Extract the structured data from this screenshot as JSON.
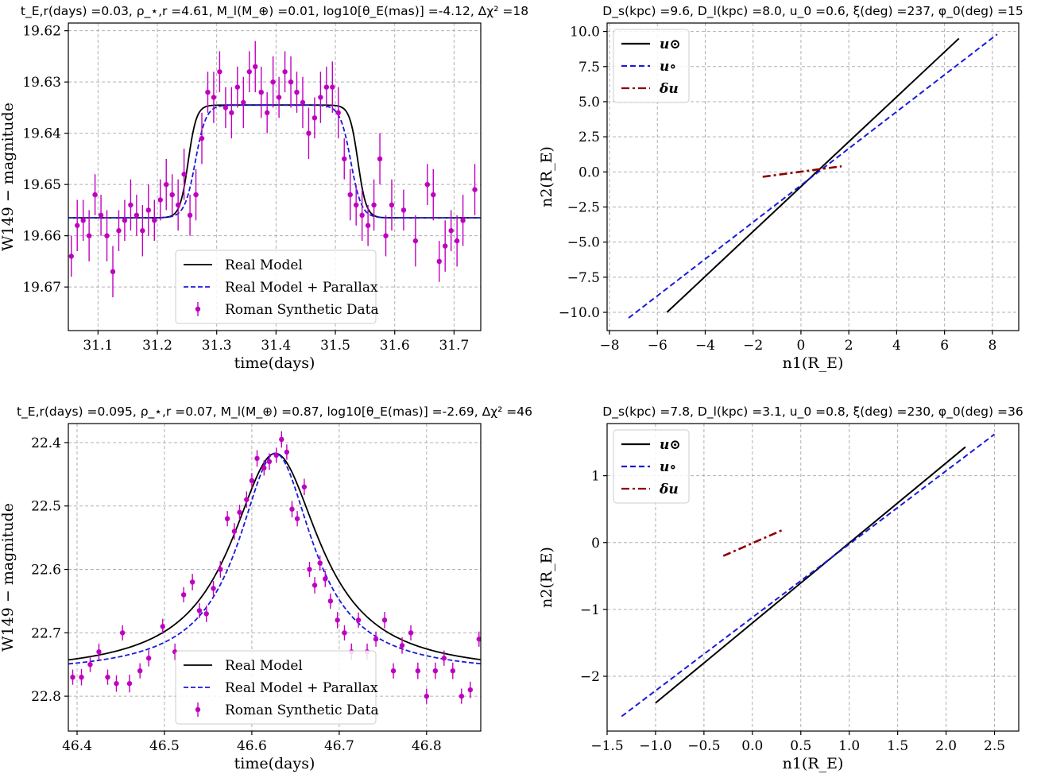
{
  "colors": {
    "data": "#c000c0",
    "real_model": "#000000",
    "parallax_model": "#1a1adc",
    "delta_u": "#8b0000",
    "grid": "#b0b0b0"
  },
  "chart_data": [
    {
      "type": "scatter",
      "title": "t_E,r(days) =0.03, ρ_⋆,r =4.61, M_l(M_⊕) =0.01, log10[θ_E(mas)] =-4.12, Δχ² =18",
      "xlabel": "time(days)",
      "ylabel": "W149 − magnitude",
      "xlim": [
        31.05,
        31.745
      ],
      "ylim": [
        19.6785,
        19.6185
      ],
      "y_inverted": true,
      "grid": true,
      "legend_position": "lower-center",
      "xticks": [
        "31.1",
        "31.2",
        "31.3",
        "31.4",
        "31.5",
        "31.6",
        "31.7"
      ],
      "yticks": [
        "19.62",
        "19.63",
        "19.64",
        "19.65",
        "19.66",
        "19.67"
      ],
      "model": {
        "kind": "plateau",
        "base": 19.6565,
        "peak": 19.6345,
        "center": 31.395,
        "halfwidth": 0.143,
        "edge": 0.007
      },
      "parallax_model": {
        "kind": "plateau",
        "base": 19.6565,
        "peak": 19.6345,
        "center": 31.395,
        "halfwidth": 0.131,
        "edge": 0.009
      },
      "series": [
        {
          "name": "Real Model",
          "style": "solid"
        },
        {
          "name": "Real Model + Parallax",
          "style": "dashed"
        },
        {
          "name": "Roman Synthetic Data",
          "style": "errorbar",
          "x": [
            31.055,
            31.065,
            31.075,
            31.085,
            31.095,
            31.105,
            31.115,
            31.125,
            31.135,
            31.145,
            31.155,
            31.165,
            31.175,
            31.185,
            31.195,
            31.205,
            31.215,
            31.225,
            31.235,
            31.245,
            31.255,
            31.265,
            31.275,
            31.285,
            31.295,
            31.305,
            31.315,
            31.325,
            31.335,
            31.345,
            31.355,
            31.365,
            31.375,
            31.385,
            31.395,
            31.405,
            31.415,
            31.425,
            31.435,
            31.445,
            31.455,
            31.465,
            31.475,
            31.485,
            31.495,
            31.505,
            31.515,
            31.525,
            31.535,
            31.545,
            31.555,
            31.565,
            31.575,
            31.585,
            31.595,
            31.615,
            31.635,
            31.655,
            31.665,
            31.675,
            31.685,
            31.695,
            31.705,
            31.715,
            31.735
          ],
          "y": [
            19.664,
            19.658,
            19.657,
            19.66,
            19.652,
            19.656,
            19.66,
            19.667,
            19.659,
            19.657,
            19.654,
            19.656,
            19.659,
            19.655,
            19.657,
            19.653,
            19.65,
            19.652,
            19.654,
            19.648,
            19.656,
            19.652,
            19.641,
            19.632,
            19.633,
            19.628,
            19.635,
            19.636,
            19.631,
            19.634,
            19.628,
            19.627,
            19.632,
            19.636,
            19.63,
            19.633,
            19.628,
            19.63,
            19.632,
            19.634,
            19.64,
            19.637,
            19.633,
            19.631,
            19.631,
            19.636,
            19.645,
            19.652,
            19.654,
            19.656,
            19.658,
            19.654,
            19.645,
            19.66,
            19.654,
            19.655,
            19.661,
            19.65,
            19.652,
            19.665,
            19.662,
            19.659,
            19.661,
            19.657,
            19.651
          ],
          "err": [
            0.004,
            0.005,
            0.004,
            0.005,
            0.004,
            0.004,
            0.005,
            0.005,
            0.004,
            0.004,
            0.005,
            0.004,
            0.005,
            0.005,
            0.004,
            0.004,
            0.005,
            0.004,
            0.005,
            0.005,
            0.004,
            0.005,
            0.005,
            0.004,
            0.005,
            0.004,
            0.004,
            0.005,
            0.004,
            0.005,
            0.004,
            0.005,
            0.005,
            0.004,
            0.005,
            0.004,
            0.004,
            0.005,
            0.004,
            0.005,
            0.005,
            0.004,
            0.005,
            0.004,
            0.005,
            0.005,
            0.004,
            0.005,
            0.004,
            0.005,
            0.004,
            0.005,
            0.005,
            0.004,
            0.005,
            0.004,
            0.005,
            0.004,
            0.005,
            0.004,
            0.005,
            0.004,
            0.005,
            0.005,
            0.005
          ]
        }
      ]
    },
    {
      "type": "line",
      "title": "D_s(kpc) =9.6, D_l(kpc) =8.0, u_0 =0.6, ξ(deg) =237, φ_0(deg) =15",
      "xlabel": "n1(R_E)",
      "ylabel": "n2(R_E)",
      "xlim": [
        -8.1,
        9.1
      ],
      "ylim": [
        -11.3,
        10.6
      ],
      "grid": true,
      "legend_position": "top-left",
      "xticks": [
        "−8",
        "−6",
        "−4",
        "−2",
        "0",
        "2",
        "4",
        "6",
        "8"
      ],
      "yticks": [
        "10.0",
        "7.5",
        "5.0",
        "2.5",
        "0.0",
        "−2.5",
        "−5.0",
        "−7.5",
        "−10.0"
      ],
      "series": [
        {
          "name": "u⊙",
          "style": "solid",
          "x": [
            -5.6,
            6.6
          ],
          "y": [
            -10.0,
            9.5
          ]
        },
        {
          "name": "u∘",
          "style": "dashed",
          "x": [
            -7.2,
            8.2
          ],
          "y": [
            -10.4,
            9.8
          ]
        },
        {
          "name": "δu",
          "style": "dashdot",
          "x": [
            -1.6,
            1.7
          ],
          "y": [
            -0.35,
            0.4
          ]
        }
      ]
    },
    {
      "type": "scatter",
      "title": "t_E,r(days) =0.095, ρ_⋆,r =0.07, M_l(M_⊕) =0.87, log10[θ_E(mas)] =-2.69, Δχ² =46",
      "xlabel": "time(days)",
      "ylabel": "W149 − magnitude",
      "xlim": [
        46.39,
        46.862
      ],
      "ylim": [
        22.855,
        22.37
      ],
      "y_inverted": true,
      "grid": true,
      "legend_position": "lower-center",
      "xticks": [
        "46.4",
        "46.5",
        "46.6",
        "46.7",
        "46.8"
      ],
      "yticks": [
        "22.4",
        "22.5",
        "22.6",
        "22.7",
        "22.8"
      ],
      "model": {
        "kind": "lorentz",
        "base": 22.765,
        "peak": 22.417,
        "center": 46.627,
        "width": 0.062
      },
      "parallax_model": {
        "kind": "lorentz",
        "base": 22.765,
        "peak": 22.417,
        "center": 46.627,
        "width": 0.052
      },
      "series": [
        {
          "name": "Real Model",
          "style": "solid"
        },
        {
          "name": "Real Model + Parallax",
          "style": "dashed"
        },
        {
          "name": "Roman Synthetic Data",
          "style": "errorbar",
          "x": [
            46.395,
            46.405,
            46.415,
            46.425,
            46.435,
            46.445,
            46.452,
            46.46,
            46.472,
            46.482,
            46.498,
            46.512,
            46.522,
            46.532,
            46.54,
            46.548,
            46.556,
            46.564,
            46.572,
            46.58,
            46.586,
            46.594,
            46.6,
            46.606,
            46.614,
            46.62,
            46.628,
            46.634,
            46.64,
            46.646,
            46.652,
            46.66,
            46.666,
            46.672,
            46.678,
            46.684,
            46.69,
            46.698,
            46.706,
            46.714,
            46.722,
            46.732,
            46.742,
            46.752,
            46.762,
            46.772,
            46.782,
            46.79,
            46.8,
            46.81,
            46.82,
            46.83,
            46.84,
            46.85,
            46.86
          ],
          "y": [
            22.77,
            22.77,
            22.75,
            22.73,
            22.77,
            22.78,
            22.7,
            22.78,
            22.76,
            22.74,
            22.69,
            22.73,
            22.64,
            22.62,
            22.665,
            22.67,
            22.63,
            22.6,
            22.52,
            22.54,
            22.51,
            22.49,
            22.46,
            22.425,
            22.44,
            22.43,
            22.42,
            22.395,
            22.415,
            22.505,
            22.52,
            22.47,
            22.6,
            22.625,
            22.59,
            22.615,
            22.65,
            22.68,
            22.7,
            22.73,
            22.68,
            22.73,
            22.71,
            22.68,
            22.76,
            22.72,
            22.7,
            22.76,
            22.8,
            22.76,
            22.74,
            22.76,
            22.8,
            22.79,
            22.71
          ],
          "err": [
            0.012,
            0.013,
            0.012,
            0.013,
            0.012,
            0.013,
            0.012,
            0.014,
            0.012,
            0.013,
            0.012,
            0.013,
            0.012,
            0.013,
            0.012,
            0.013,
            0.012,
            0.013,
            0.012,
            0.013,
            0.012,
            0.013,
            0.012,
            0.013,
            0.012,
            0.013,
            0.012,
            0.013,
            0.012,
            0.013,
            0.012,
            0.013,
            0.012,
            0.013,
            0.012,
            0.013,
            0.012,
            0.013,
            0.012,
            0.013,
            0.012,
            0.013,
            0.012,
            0.013,
            0.012,
            0.013,
            0.012,
            0.013,
            0.012,
            0.013,
            0.012,
            0.013,
            0.012,
            0.013,
            0.012
          ]
        }
      ]
    },
    {
      "type": "line",
      "title": "D_s(kpc) =7.8, D_l(kpc) =3.1, u_0 =0.8, ξ(deg) =230, φ_0(deg) =36",
      "xlabel": "n1(R_E)",
      "ylabel": "n2(R_E)",
      "xlim": [
        -1.5,
        2.75
      ],
      "ylim": [
        -2.82,
        1.78
      ],
      "grid": true,
      "legend_position": "top-left",
      "xticks": [
        "−1.5",
        "−1.0",
        "−0.5",
        "0.0",
        "0.5",
        "1.0",
        "1.5",
        "2.0",
        "2.5"
      ],
      "yticks": [
        "1",
        "0",
        "−1",
        "−2"
      ],
      "series": [
        {
          "name": "u⊙",
          "style": "solid",
          "x": [
            -1.0,
            2.2
          ],
          "y": [
            -2.4,
            1.43
          ]
        },
        {
          "name": "u∘",
          "style": "dashed",
          "x": [
            -1.35,
            2.5
          ],
          "y": [
            -2.6,
            1.62
          ]
        },
        {
          "name": "δu",
          "style": "dashdot",
          "x": [
            -0.3,
            0.33
          ],
          "y": [
            -0.2,
            0.2
          ]
        }
      ]
    }
  ]
}
